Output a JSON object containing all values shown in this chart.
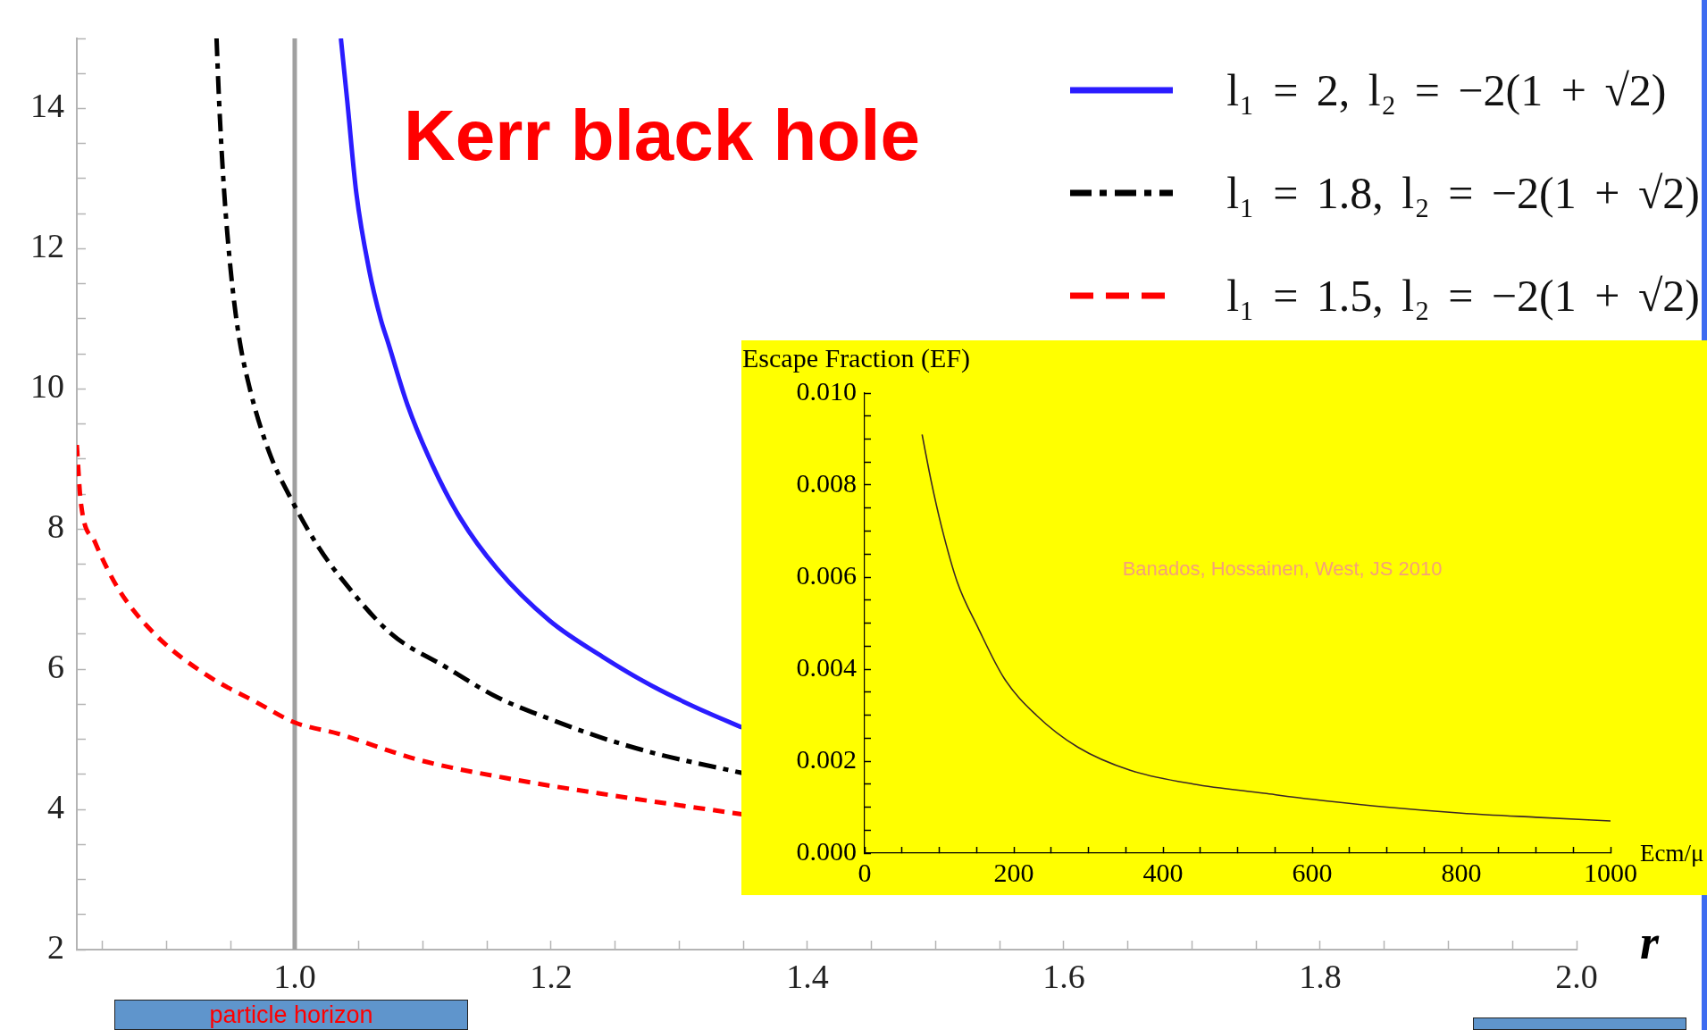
{
  "chart_data": [
    {
      "type": "line",
      "title": "Kerr black hole",
      "xlabel": "r",
      "xlim": [
        0.83,
        2.0
      ],
      "xticks": [
        {
          "value": 0.85,
          "label": null
        },
        {
          "value": 0.9,
          "label": null
        },
        {
          "value": 0.95,
          "label": null
        },
        {
          "value": 1,
          "label": "1.0"
        },
        {
          "value": 1.05,
          "label": null
        },
        {
          "value": 1.1,
          "label": null
        },
        {
          "value": 1.15,
          "label": null
        },
        1.2,
        {
          "value": 1.25,
          "label": null
        },
        {
          "value": 1.3,
          "label": null
        },
        {
          "value": 1.35,
          "label": null
        },
        1.4,
        {
          "value": 1.45,
          "label": null
        },
        {
          "value": 1.5,
          "label": null
        },
        {
          "value": 1.55,
          "label": null
        },
        1.6,
        {
          "value": 1.65,
          "label": null
        },
        {
          "value": 1.7,
          "label": null
        },
        {
          "value": 1.75,
          "label": null
        },
        1.8,
        {
          "value": 1.85,
          "label": null
        },
        {
          "value": 1.9,
          "label": null
        },
        {
          "value": 1.95,
          "label": null
        },
        {
          "value": 2,
          "label": "2.0"
        }
      ],
      "ylim": [
        2,
        15
      ],
      "yticks": [
        2,
        {
          "value": 2.5,
          "label": null
        },
        {
          "value": 3,
          "label": null
        },
        {
          "value": 3.5,
          "label": null
        },
        4,
        {
          "value": 4.5,
          "label": null
        },
        {
          "value": 5,
          "label": null
        },
        {
          "value": 5.5,
          "label": null
        },
        6,
        {
          "value": 6.5,
          "label": null
        },
        {
          "value": 7,
          "label": null
        },
        {
          "value": 7.5,
          "label": null
        },
        8,
        {
          "value": 8.5,
          "label": null
        },
        {
          "value": 9,
          "label": null
        },
        {
          "value": 9.5,
          "label": null
        },
        10,
        {
          "value": 10.5,
          "label": null
        },
        {
          "value": 11,
          "label": null
        },
        {
          "value": 11.5,
          "label": null
        },
        12,
        {
          "value": 12.5,
          "label": null
        },
        {
          "value": 13,
          "label": null
        },
        {
          "value": 13.5,
          "label": null
        },
        14,
        {
          "value": 14.5,
          "label": null
        },
        {
          "value": 15,
          "label": null
        }
      ],
      "grid": false,
      "legend": "top right",
      "ref_lines": [
        {
          "axis": "x",
          "value": 1.0,
          "color": "#a0a0a0"
        }
      ],
      "annotations": [
        "particle horizon"
      ],
      "series": [
        {
          "name": "l₁ = 2, l₂ = −2(1 + √2)",
          "color": "#2a1cff",
          "line_style": "solid",
          "x": [
            1.036,
            1.041,
            1.048,
            1.058,
            1.067,
            1.073,
            1.088,
            1.108,
            1.129,
            1.158,
            1.199,
            1.24,
            1.281,
            1.322,
            1.349
          ],
          "values": [
            15.0,
            14.1,
            12.8,
            11.7,
            11.0,
            10.65,
            9.77,
            8.89,
            8.16,
            7.43,
            6.69,
            6.18,
            5.74,
            5.38,
            5.17
          ]
        },
        {
          "name": "l₁ = 1.8, l₂ = −2(1 + √2)",
          "color": "#000000",
          "line_style": "dashdot",
          "x": [
            0.939,
            0.941,
            0.945,
            0.95,
            0.956,
            0.965,
            0.98,
            0.998,
            1.019,
            1.034,
            1.075,
            1.117,
            1.158,
            1.199,
            1.24,
            1.281,
            1.349
          ],
          "values": [
            15.0,
            14.1,
            12.8,
            11.7,
            10.8,
            10.0,
            9.1,
            8.4,
            7.73,
            7.35,
            6.51,
            6.04,
            5.6,
            5.29,
            5.02,
            4.8,
            4.52
          ]
        },
        {
          "name": "l₁ = 1.5, l₂ = −2(1 + √2)",
          "color": "#ff0000",
          "line_style": "dashed",
          "x": [
            0.83,
            0.833,
            0.844,
            0.863,
            0.892,
            0.931,
            0.97,
            1.0,
            1.034,
            1.096,
            1.164,
            1.237,
            1.349
          ],
          "values": [
            9.2,
            8.4,
            7.82,
            7.13,
            6.48,
            5.92,
            5.53,
            5.24,
            5.08,
            4.71,
            4.45,
            4.23,
            3.93
          ]
        }
      ]
    },
    {
      "type": "line",
      "xlabel": "Ecm/μ",
      "ylabel": "Escape Fraction (EF)",
      "xlim": [
        0,
        1000
      ],
      "xticks": [
        0,
        {
          "value": 50,
          "label": null
        },
        {
          "value": 100,
          "label": null
        },
        {
          "value": 150,
          "label": null
        },
        200,
        {
          "value": 250,
          "label": null
        },
        {
          "value": 300,
          "label": null
        },
        {
          "value": 350,
          "label": null
        },
        400,
        {
          "value": 450,
          "label": null
        },
        {
          "value": 500,
          "label": null
        },
        {
          "value": 550,
          "label": null
        },
        600,
        {
          "value": 650,
          "label": null
        },
        {
          "value": 700,
          "label": null
        },
        {
          "value": 750,
          "label": null
        },
        800,
        {
          "value": 850,
          "label": null
        },
        {
          "value": 900,
          "label": null
        },
        {
          "value": 950,
          "label": null
        },
        1000
      ],
      "ylim": [
        0,
        0.01
      ],
      "yticks": [
        {
          "value": 0,
          "label": "0.000"
        },
        {
          "value": 0.0005,
          "label": null
        },
        {
          "value": 0.001,
          "label": null
        },
        {
          "value": 0.0015,
          "label": null
        },
        0.002,
        {
          "value": 0.0025,
          "label": null
        },
        {
          "value": 0.003,
          "label": null
        },
        {
          "value": 0.0035,
          "label": null
        },
        0.004,
        {
          "value": 0.0045,
          "label": null
        },
        {
          "value": 0.005,
          "label": null
        },
        {
          "value": 0.0055,
          "label": null
        },
        0.006,
        {
          "value": 0.0065,
          "label": null
        },
        {
          "value": 0.007,
          "label": null
        },
        {
          "value": 0.0075,
          "label": null
        },
        0.008,
        {
          "value": 0.0085,
          "label": null
        },
        {
          "value": 0.009,
          "label": null
        },
        {
          "value": 0.0095,
          "label": null
        },
        {
          "value": 0.01,
          "label": "0.010"
        }
      ],
      "grid": false,
      "annotations": [
        "Banados, Hossainen, West, JS 2010"
      ],
      "series": [
        {
          "color": "#3a2626",
          "x": [
            77,
            89,
            103,
            124,
            152,
            187,
            230,
            286,
            356,
            441,
            536,
            600,
            700,
            800,
            900,
            1000
          ],
          "values": [
            0.0091,
            0.0081,
            0.0071,
            0.0059,
            0.0049,
            0.0038,
            0.003,
            0.0023,
            0.0018,
            0.0015,
            0.0013,
            0.00117,
            0.001,
            0.00087,
            0.00078,
            0.0007
          ]
        }
      ]
    }
  ]
}
